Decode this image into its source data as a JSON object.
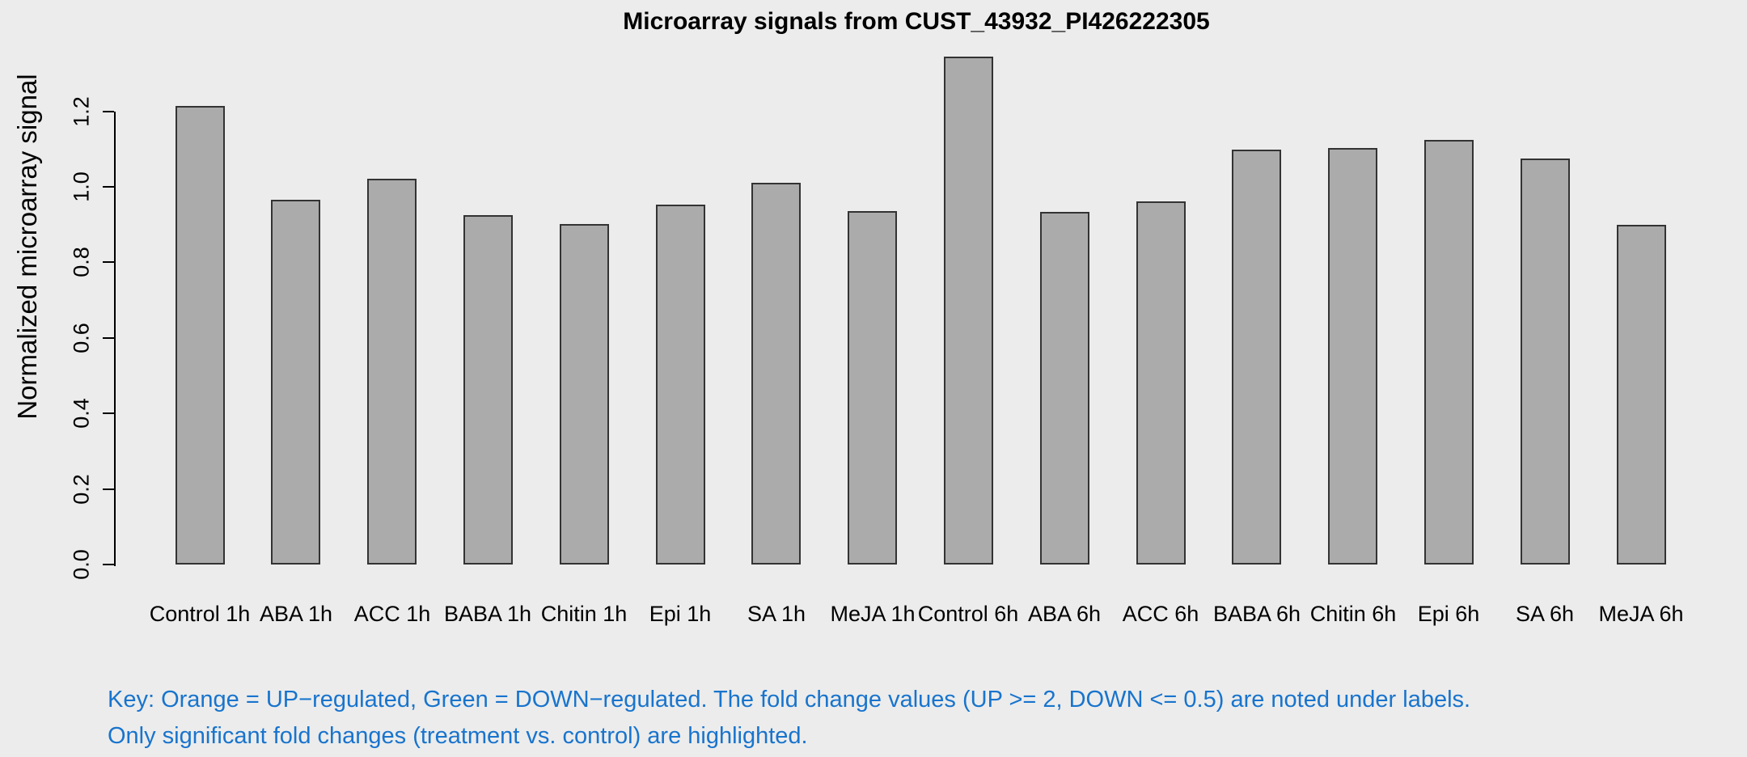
{
  "chart_data": {
    "type": "bar",
    "title": "Microarray signals from CUST_43932_PI426222305",
    "ylabel": "Normalized microarray signal",
    "xlabel": "",
    "categories": [
      "Control 1h",
      "ABA 1h",
      "ACC 1h",
      "BABA 1h",
      "Chitin 1h",
      "Epi 1h",
      "SA 1h",
      "MeJA 1h",
      "Control 6h",
      "ABA 6h",
      "ACC 6h",
      "BABA 6h",
      "Chitin 6h",
      "Epi 6h",
      "SA 6h",
      "MeJA 6h"
    ],
    "values": [
      1.215,
      0.966,
      1.021,
      0.924,
      0.902,
      0.953,
      1.01,
      0.936,
      1.345,
      0.933,
      0.962,
      1.099,
      1.103,
      1.124,
      1.076,
      0.899
    ],
    "ylim": [
      0,
      1.35
    ],
    "yticks": [
      0,
      0.2,
      0.4,
      0.6,
      0.8,
      1.0,
      1.2
    ],
    "ytick_labels": [
      "0.0",
      "0.2",
      "0.4",
      "0.6",
      "0.8",
      "1.0",
      "1.2"
    ],
    "grid": false,
    "legend": "none",
    "annotations": [
      "Key: Orange = UP−regulated, Green = DOWN−regulated. The fold change values (UP >= 2, DOWN <= 0.5) are noted under labels.",
      "Only significant fold changes (treatment vs. control) are highlighted."
    ],
    "colors": {
      "background": "#ECECEC",
      "bar_fill": "#ABABAB",
      "bar_border": "#333333",
      "axis": "#000000",
      "annotation_text": "#1874CD"
    }
  }
}
